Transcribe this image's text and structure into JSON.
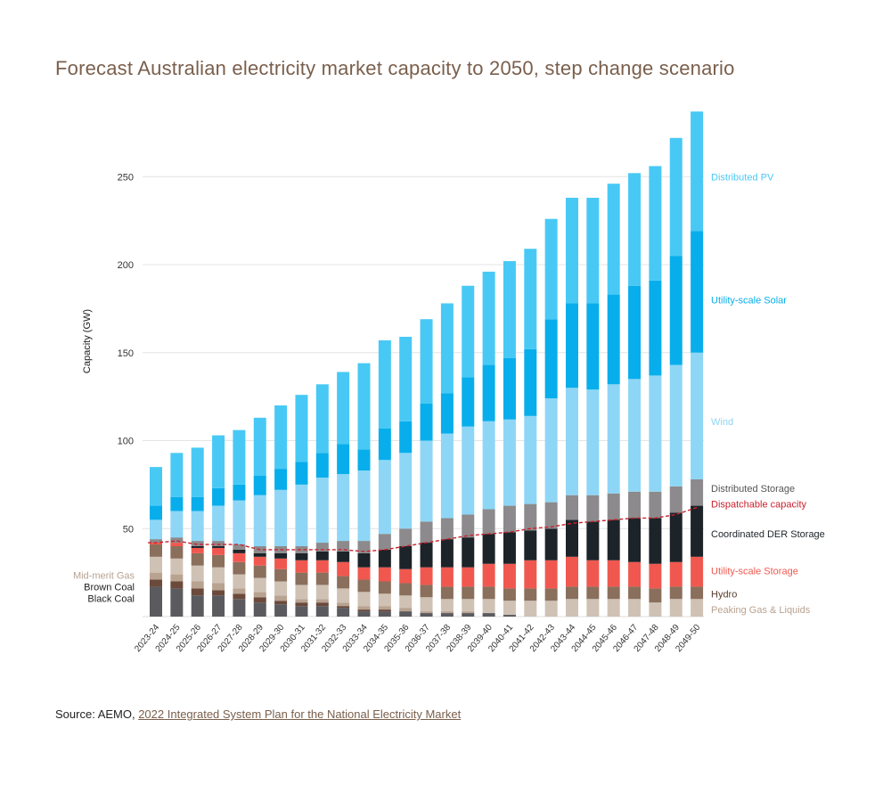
{
  "title": "Forecast Australian electricity market capacity to 2050, step change scenario",
  "source": {
    "prefix": "Source: AEMO, ",
    "link_text": "2022 Integrated System Plan for the National Electricity Market"
  },
  "chart_data": {
    "type": "bar",
    "stacked": true,
    "ylabel": "Capacity (GW)",
    "xlabel": "",
    "ylim": [
      0,
      290
    ],
    "yticks": [
      50,
      100,
      150,
      200,
      250
    ],
    "grid": true,
    "legend_placement": "right (inline labels)",
    "categories": [
      "2023-24",
      "2024-25",
      "2025-26",
      "2026-27",
      "2027-28",
      "2028-29",
      "2029-30",
      "2030-31",
      "2031-32",
      "2032-33",
      "2033-34",
      "2034-35",
      "2035-36",
      "2036-37",
      "2037-38",
      "2038-39",
      "2039-40",
      "2040-41",
      "2041-42",
      "2042-43",
      "2043-44",
      "2044-45",
      "2045-46",
      "2046-47",
      "2047-48",
      "2048-49",
      "2049-50"
    ],
    "series": [
      {
        "name": "Black Coal",
        "color": "#5b5b5f",
        "values": [
          17,
          16,
          12,
          12,
          10,
          8,
          7,
          6,
          6,
          5,
          3,
          3,
          3,
          2,
          2,
          2,
          2,
          1,
          0,
          0,
          0,
          0,
          0,
          0,
          0,
          0,
          0
        ]
      },
      {
        "name": "Brown Coal",
        "color": "#6b4a3c",
        "values": [
          4,
          4,
          4,
          3,
          3,
          3,
          2,
          2,
          2,
          1,
          1,
          1,
          0,
          0,
          0,
          0,
          0,
          0,
          0,
          0,
          0,
          0,
          0,
          0,
          0,
          0,
          0
        ]
      },
      {
        "name": "Mid-merit Gas",
        "color": "#b8a290",
        "values": [
          4,
          4,
          4,
          4,
          3,
          3,
          3,
          2,
          2,
          2,
          2,
          2,
          2,
          1,
          1,
          1,
          0,
          0,
          0,
          0,
          0,
          0,
          0,
          0,
          0,
          0,
          0
        ]
      },
      {
        "name": "Peaking Gas & Liquids",
        "color": "#cfc2b5",
        "values": [
          9,
          9,
          9,
          9,
          8,
          8,
          8,
          8,
          8,
          8,
          8,
          7,
          7,
          8,
          7,
          7,
          8,
          8,
          9,
          9,
          10,
          10,
          10,
          10,
          8,
          10,
          10
        ]
      },
      {
        "name": "Hydro",
        "color": "#8a6f5c",
        "values": [
          7,
          7,
          7,
          7,
          7,
          7,
          7,
          7,
          7,
          7,
          7,
          7,
          7,
          7,
          7,
          7,
          7,
          7,
          7,
          7,
          7,
          7,
          7,
          7,
          8,
          7,
          7
        ]
      },
      {
        "name": "Utility-scale Storage",
        "color": "#f0584f",
        "values": [
          1,
          2,
          3,
          4,
          5,
          5,
          6,
          7,
          7,
          8,
          7,
          8,
          8,
          10,
          11,
          11,
          13,
          14,
          16,
          16,
          17,
          15,
          15,
          14,
          14,
          14,
          17
        ]
      },
      {
        "name": "Coordinated DER Storage",
        "color": "#1c2329",
        "values": [
          0,
          0,
          1,
          1,
          2,
          2,
          3,
          4,
          5,
          6,
          8,
          10,
          13,
          14,
          16,
          17,
          17,
          18,
          17,
          18,
          21,
          22,
          23,
          25,
          26,
          28,
          29
        ]
      },
      {
        "name": "Distributed Storage",
        "color": "#8c8a8c",
        "values": [
          2,
          3,
          3,
          3,
          3,
          4,
          4,
          4,
          5,
          6,
          7,
          9,
          10,
          12,
          12,
          13,
          14,
          15,
          15,
          15,
          14,
          15,
          15,
          15,
          15,
          15,
          15
        ]
      },
      {
        "name": "Wind",
        "color": "#8ed6f6",
        "values": [
          11,
          15,
          17,
          20,
          25,
          29,
          32,
          35,
          37,
          38,
          40,
          42,
          43,
          46,
          48,
          50,
          50,
          49,
          50,
          59,
          61,
          60,
          62,
          64,
          66,
          69,
          72
        ]
      },
      {
        "name": "Utility-scale Solar",
        "color": "#08aeeb",
        "values": [
          8,
          8,
          8,
          10,
          9,
          11,
          12,
          13,
          14,
          17,
          12,
          18,
          18,
          21,
          23,
          28,
          32,
          35,
          38,
          45,
          48,
          49,
          51,
          53,
          54,
          62,
          69
        ]
      },
      {
        "name": "Distributed PV",
        "color": "#48c9f5",
        "values": [
          22,
          25,
          28,
          30,
          31,
          33,
          36,
          38,
          39,
          41,
          49,
          50,
          48,
          48,
          51,
          52,
          53,
          55,
          57,
          57,
          60,
          60,
          63,
          64,
          65,
          67,
          68
        ]
      }
    ],
    "line_series": {
      "name": "Dispatchable capacity",
      "color": "#c8202e",
      "style": "dashed",
      "values": [
        42,
        43,
        41,
        41,
        41,
        38,
        38,
        38,
        38,
        38,
        37,
        38,
        40,
        42,
        44,
        46,
        47,
        48,
        50,
        51,
        53,
        54,
        55,
        56,
        56,
        58,
        62
      ]
    },
    "legend": [
      {
        "label": "Distributed PV",
        "color": "#48c9f5",
        "y": 250
      },
      {
        "label": "Utility-scale Solar",
        "color": "#08aeeb",
        "y": 180
      },
      {
        "label": "Wind",
        "color": "#8ed6f6",
        "y": 111
      },
      {
        "label": "Distributed Storage",
        "color": "#555555",
        "y": 73
      },
      {
        "label": "Dispatchable capacity",
        "color": "#c8202e",
        "y": 64
      },
      {
        "label": "Coordinated DER Storage",
        "color": "#1c2329",
        "y": 47
      },
      {
        "label": "Utility-scale Storage",
        "color": "#f0584f",
        "y": 26
      },
      {
        "label": "Hydro",
        "color": "#5a4030",
        "y": 13
      },
      {
        "label": "Peaking Gas & Liquids",
        "color": "#b8a290",
        "y": 4
      }
    ],
    "legend_left": [
      {
        "label": "Mid-merit Gas",
        "color": "#b8a290",
        "y": 23.5
      },
      {
        "label": "Brown Coal",
        "color": "#222222",
        "y": 17
      },
      {
        "label": "Black Coal",
        "color": "#222222",
        "y": 10.5
      }
    ]
  }
}
